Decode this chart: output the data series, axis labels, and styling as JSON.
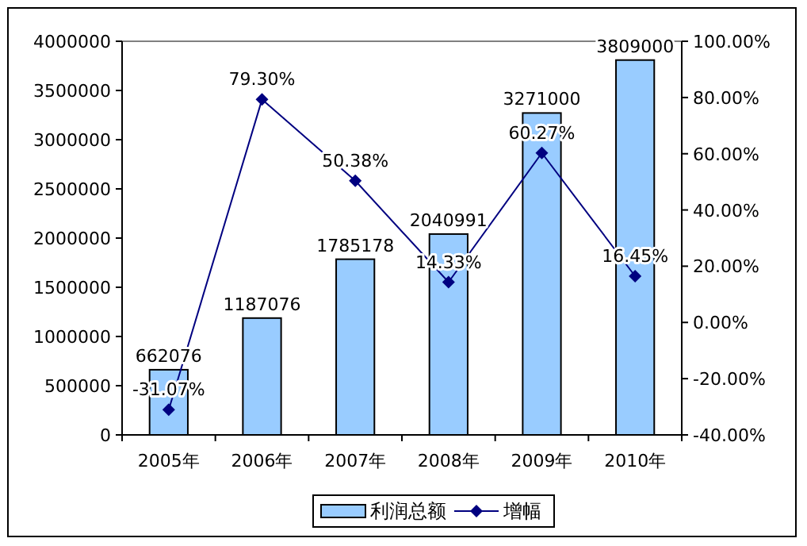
{
  "chart_data": {
    "type": "bar",
    "categories": [
      "2005年",
      "2006年",
      "2007年",
      "2008年",
      "2009年",
      "2010年"
    ],
    "series": [
      {
        "name": "利润总额",
        "color": "#99ccff",
        "values": [
          662076,
          1187076,
          1785178,
          2040991,
          3271000,
          3809000
        ],
        "data_labels": true
      },
      {
        "name": "增幅",
        "type": "line",
        "axis": "y2",
        "color": "#000080",
        "marker": "diamond",
        "values": [
          -31.07,
          79.3,
          50.38,
          14.33,
          60.27,
          16.45
        ],
        "value_labels": [
          "-31.07%",
          "79.30%",
          "50.38%",
          "14.33%",
          "60.27%",
          "16.45%"
        ]
      }
    ],
    "ylim": [
      0,
      4000000
    ],
    "yticks": [
      0,
      500000,
      1000000,
      1500000,
      2000000,
      2500000,
      3000000,
      3500000,
      4000000
    ],
    "y2lim": [
      -40,
      100
    ],
    "y2ticks": [
      {
        "value": -40,
        "label": "-40.00%"
      },
      {
        "value": -20,
        "label": "-20.00%"
      },
      {
        "value": 0,
        "label": "0.00%"
      },
      {
        "value": 20,
        "label": "20.00%"
      },
      {
        "value": 40,
        "label": "40.00%"
      },
      {
        "value": 60,
        "label": "60.00%"
      },
      {
        "value": 80,
        "label": "80.00%"
      },
      {
        "value": 100,
        "label": "100.00%"
      }
    ],
    "grid": false,
    "legend": "bottom"
  }
}
